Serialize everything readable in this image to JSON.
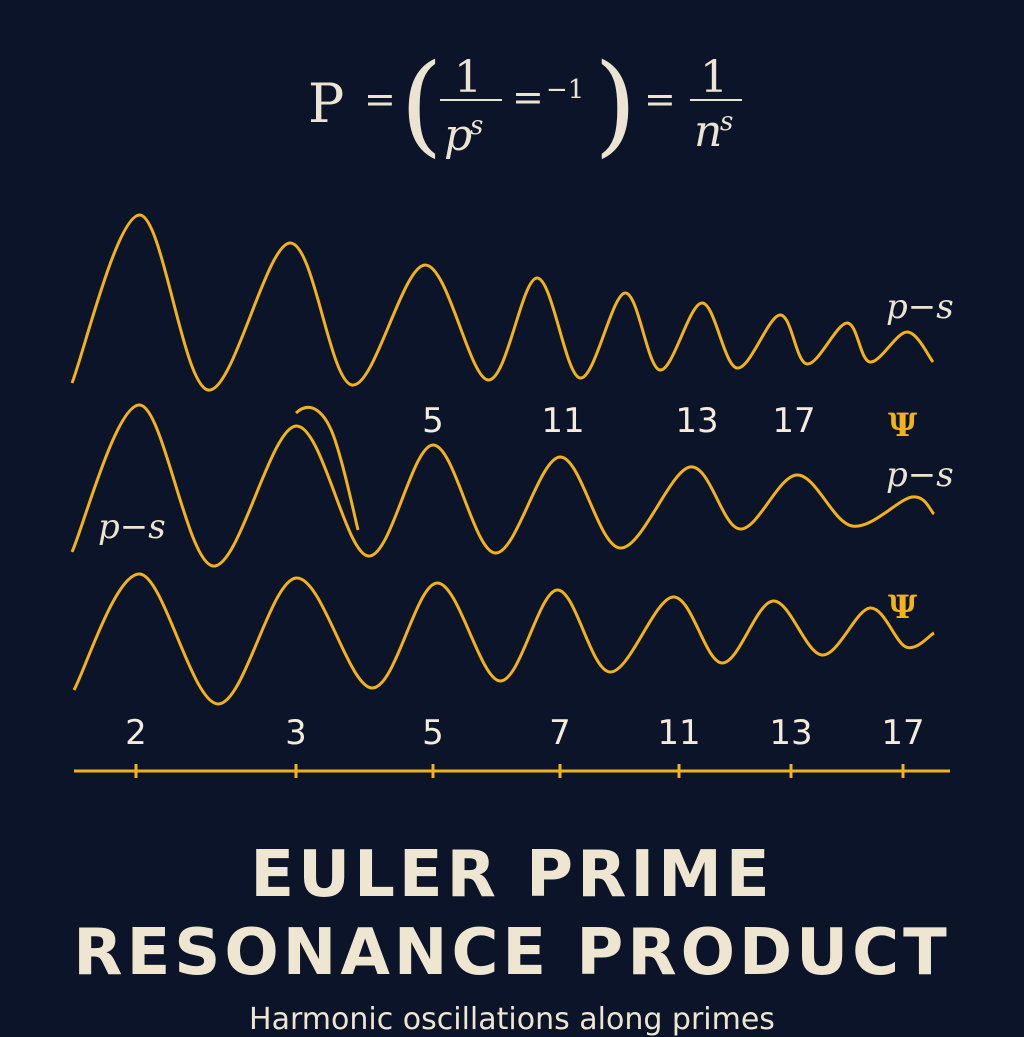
{
  "formula": {
    "lhs": "P",
    "eq": "=",
    "num1": "1",
    "den1_base": "p",
    "den1_exp": "s",
    "inner_eq": "=",
    "inner_exp": "−1",
    "eq2": "=",
    "num2": "1",
    "den2_base": "n",
    "den2_exp": "s"
  },
  "wave_labels": {
    "top_right": "p−s",
    "middle_right": "p−s",
    "middle_left": "p−s",
    "psi_upper": "Ψ",
    "psi_lower": "Ψ"
  },
  "upper_primes": [
    "5",
    "11",
    "13",
    "17"
  ],
  "axis_primes": [
    "2",
    "3",
    "5",
    "7",
    "11",
    "13",
    "17"
  ],
  "title": {
    "line1": "EULER PRIME",
    "line2": "RESONANCE PRODUCT",
    "subtitle": "Harmonic oscillations along primes"
  },
  "colors": {
    "background": "#0b1428",
    "wave": "#f2b21c",
    "text": "#efe6d2"
  }
}
